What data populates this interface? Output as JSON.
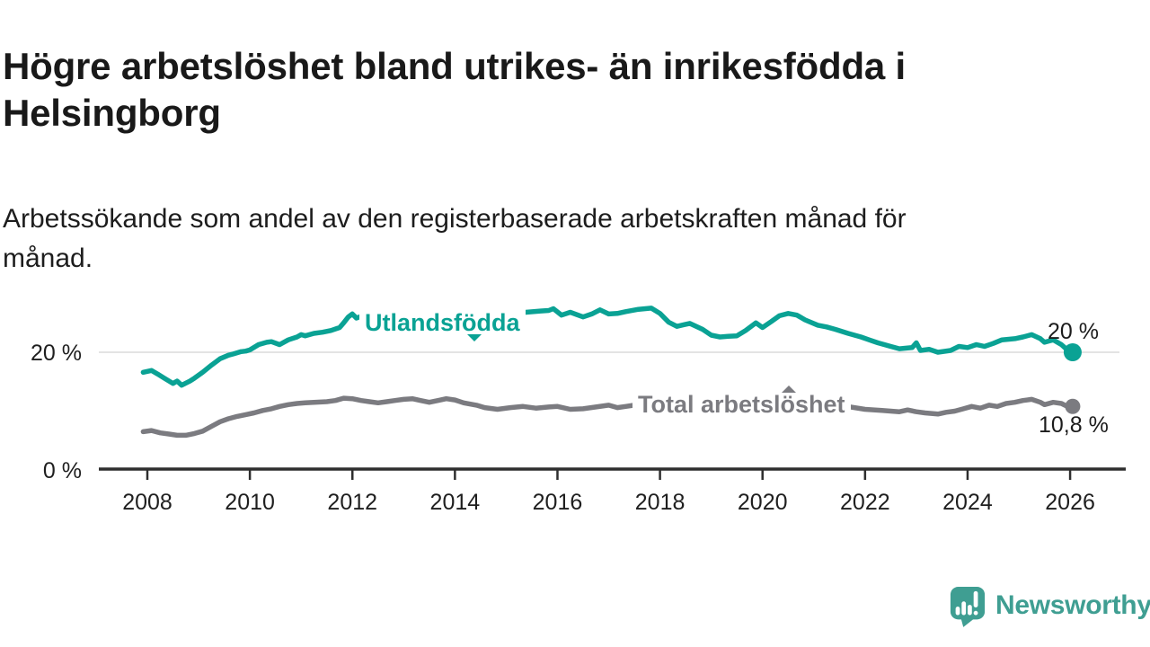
{
  "header": {
    "title": "Högre arbetslöshet bland utrikes- än inrikesfödda i Helsingborg",
    "subtitle": "Arbetssökande som andel av den registerbaserade arbetskraften månad för månad."
  },
  "chart_data": {
    "type": "line",
    "title": "Högre arbetslöshet bland utrikes- än inrikesfödda i Helsingborg",
    "subtitle": "Arbetssökande som andel av den registerbaserade arbetskraften månad för månad.",
    "xlabel": "",
    "ylabel": "",
    "x_axis": {
      "unit": "year",
      "range": [
        2007.9,
        2026.3
      ],
      "ticks": [
        2008,
        2010,
        2012,
        2014,
        2016,
        2018,
        2020,
        2022,
        2024,
        2026
      ]
    },
    "y_axis": {
      "unit": "percent",
      "range": [
        0,
        32
      ],
      "ticks": [
        {
          "value": 20,
          "label": "20 %"
        },
        {
          "value": 0,
          "label": "0 %"
        }
      ],
      "gridlines": [
        20
      ]
    },
    "grid": "single light horizontal gridline at 20 %",
    "legend_position": "inline labels on lines",
    "series": [
      {
        "name": "Utlandsfödda",
        "color": "#0aa294",
        "end_label": "20 %",
        "last_value": 20,
        "points": [
          [
            2007.92,
            16.6
          ],
          [
            2008.08,
            16.9
          ],
          [
            2008.2,
            16.3
          ],
          [
            2008.33,
            15.6
          ],
          [
            2008.5,
            14.7
          ],
          [
            2008.58,
            15.1
          ],
          [
            2008.67,
            14.4
          ],
          [
            2008.83,
            15.1
          ],
          [
            2008.92,
            15.6
          ],
          [
            2009.08,
            16.6
          ],
          [
            2009.25,
            17.8
          ],
          [
            2009.42,
            18.9
          ],
          [
            2009.58,
            19.5
          ],
          [
            2009.67,
            19.7
          ],
          [
            2009.83,
            20.1
          ],
          [
            2009.92,
            20.2
          ],
          [
            2010.0,
            20.4
          ],
          [
            2010.17,
            21.3
          ],
          [
            2010.33,
            21.7
          ],
          [
            2010.42,
            21.8
          ],
          [
            2010.58,
            21.3
          ],
          [
            2010.75,
            22.1
          ],
          [
            2010.92,
            22.6
          ],
          [
            2011.0,
            23.0
          ],
          [
            2011.08,
            22.8
          ],
          [
            2011.25,
            23.2
          ],
          [
            2011.42,
            23.4
          ],
          [
            2011.58,
            23.7
          ],
          [
            2011.75,
            24.2
          ],
          [
            2011.83,
            25.0
          ],
          [
            2011.92,
            26.0
          ],
          [
            2012.0,
            26.5
          ],
          [
            2012.08,
            25.8
          ],
          [
            2012.17,
            26.1
          ],
          [
            2012.33,
            25.7
          ],
          [
            2012.75,
            25.9
          ],
          [
            2013.25,
            26.1
          ],
          [
            2013.75,
            26.2
          ],
          [
            2014.25,
            26.4
          ],
          [
            2014.75,
            26.5
          ],
          [
            2015.25,
            26.7
          ],
          [
            2015.67,
            27.0
          ],
          [
            2015.83,
            27.1
          ],
          [
            2015.92,
            27.4
          ],
          [
            2016.08,
            26.3
          ],
          [
            2016.25,
            26.8
          ],
          [
            2016.5,
            26.0
          ],
          [
            2016.67,
            26.5
          ],
          [
            2016.83,
            27.2
          ],
          [
            2017.0,
            26.5
          ],
          [
            2017.17,
            26.6
          ],
          [
            2017.33,
            26.9
          ],
          [
            2017.58,
            27.3
          ],
          [
            2017.83,
            27.5
          ],
          [
            2018.0,
            26.6
          ],
          [
            2018.17,
            25.1
          ],
          [
            2018.33,
            24.4
          ],
          [
            2018.58,
            24.9
          ],
          [
            2018.83,
            23.9
          ],
          [
            2019.0,
            22.9
          ],
          [
            2019.17,
            22.6
          ],
          [
            2019.33,
            22.7
          ],
          [
            2019.5,
            22.8
          ],
          [
            2019.67,
            23.7
          ],
          [
            2019.87,
            25.0
          ],
          [
            2020.0,
            24.2
          ],
          [
            2020.17,
            25.2
          ],
          [
            2020.33,
            26.2
          ],
          [
            2020.5,
            26.6
          ],
          [
            2020.67,
            26.3
          ],
          [
            2020.83,
            25.5
          ],
          [
            2021.08,
            24.6
          ],
          [
            2021.25,
            24.3
          ],
          [
            2021.42,
            23.9
          ],
          [
            2021.67,
            23.2
          ],
          [
            2021.92,
            22.6
          ],
          [
            2022.08,
            22.1
          ],
          [
            2022.25,
            21.6
          ],
          [
            2022.5,
            21.0
          ],
          [
            2022.67,
            20.6
          ],
          [
            2022.92,
            20.8
          ],
          [
            2023.0,
            21.6
          ],
          [
            2023.08,
            20.3
          ],
          [
            2023.25,
            20.5
          ],
          [
            2023.42,
            20.0
          ],
          [
            2023.67,
            20.3
          ],
          [
            2023.83,
            21.0
          ],
          [
            2024.0,
            20.8
          ],
          [
            2024.17,
            21.3
          ],
          [
            2024.33,
            21.0
          ],
          [
            2024.5,
            21.5
          ],
          [
            2024.67,
            22.1
          ],
          [
            2024.92,
            22.3
          ],
          [
            2025.08,
            22.6
          ],
          [
            2025.25,
            23.0
          ],
          [
            2025.42,
            22.3
          ],
          [
            2025.5,
            21.7
          ],
          [
            2025.67,
            22.1
          ],
          [
            2025.83,
            21.3
          ],
          [
            2025.92,
            20.6
          ],
          [
            2026.05,
            20.0
          ]
        ]
      },
      {
        "name": "Total arbetslöshet",
        "color": "#7b7b80",
        "end_label": "10,8 %",
        "last_value": 10.8,
        "points": [
          [
            2007.92,
            6.5
          ],
          [
            2008.08,
            6.7
          ],
          [
            2008.25,
            6.3
          ],
          [
            2008.42,
            6.1
          ],
          [
            2008.58,
            5.9
          ],
          [
            2008.75,
            5.9
          ],
          [
            2008.92,
            6.2
          ],
          [
            2009.08,
            6.6
          ],
          [
            2009.25,
            7.4
          ],
          [
            2009.42,
            8.2
          ],
          [
            2009.58,
            8.7
          ],
          [
            2009.75,
            9.1
          ],
          [
            2009.92,
            9.4
          ],
          [
            2010.08,
            9.7
          ],
          [
            2010.25,
            10.1
          ],
          [
            2010.42,
            10.4
          ],
          [
            2010.58,
            10.8
          ],
          [
            2010.75,
            11.1
          ],
          [
            2010.92,
            11.3
          ],
          [
            2011.08,
            11.4
          ],
          [
            2011.25,
            11.5
          ],
          [
            2011.5,
            11.6
          ],
          [
            2011.67,
            11.8
          ],
          [
            2011.83,
            12.2
          ],
          [
            2012.0,
            12.1
          ],
          [
            2012.17,
            11.8
          ],
          [
            2012.33,
            11.6
          ],
          [
            2012.5,
            11.4
          ],
          [
            2012.67,
            11.6
          ],
          [
            2012.83,
            11.8
          ],
          [
            2013.0,
            12.0
          ],
          [
            2013.17,
            12.1
          ],
          [
            2013.33,
            11.8
          ],
          [
            2013.5,
            11.5
          ],
          [
            2013.67,
            11.8
          ],
          [
            2013.83,
            12.1
          ],
          [
            2014.0,
            11.9
          ],
          [
            2014.17,
            11.4
          ],
          [
            2014.42,
            11.0
          ],
          [
            2014.58,
            10.6
          ],
          [
            2014.83,
            10.3
          ],
          [
            2015.08,
            10.6
          ],
          [
            2015.33,
            10.8
          ],
          [
            2015.58,
            10.5
          ],
          [
            2015.83,
            10.7
          ],
          [
            2016.0,
            10.8
          ],
          [
            2016.25,
            10.3
          ],
          [
            2016.5,
            10.4
          ],
          [
            2016.75,
            10.7
          ],
          [
            2017.0,
            11.0
          ],
          [
            2017.17,
            10.6
          ],
          [
            2017.33,
            10.8
          ],
          [
            2017.5,
            11.0
          ],
          [
            2017.92,
            11.2
          ],
          [
            2018.5,
            10.9
          ],
          [
            2019.0,
            10.7
          ],
          [
            2019.5,
            10.6
          ],
          [
            2020.33,
            12.4
          ],
          [
            2020.92,
            11.9
          ],
          [
            2021.5,
            11.0
          ],
          [
            2022.0,
            10.3
          ],
          [
            2022.33,
            10.1
          ],
          [
            2022.5,
            10.0
          ],
          [
            2022.67,
            9.9
          ],
          [
            2022.83,
            10.2
          ],
          [
            2023.0,
            9.9
          ],
          [
            2023.17,
            9.7
          ],
          [
            2023.42,
            9.5
          ],
          [
            2023.58,
            9.8
          ],
          [
            2023.75,
            10.0
          ],
          [
            2023.92,
            10.4
          ],
          [
            2024.08,
            10.8
          ],
          [
            2024.25,
            10.5
          ],
          [
            2024.42,
            11.0
          ],
          [
            2024.58,
            10.8
          ],
          [
            2024.75,
            11.3
          ],
          [
            2024.92,
            11.5
          ],
          [
            2025.08,
            11.8
          ],
          [
            2025.25,
            12.0
          ],
          [
            2025.42,
            11.5
          ],
          [
            2025.5,
            11.1
          ],
          [
            2025.67,
            11.5
          ],
          [
            2025.83,
            11.3
          ],
          [
            2025.92,
            10.9
          ],
          [
            2026.05,
            10.8
          ]
        ]
      }
    ]
  },
  "branding": {
    "logo_text": "Newsworthy",
    "logo_color": "#3f9e92",
    "logo_icon": "speech-bubble-bar-chart-exclamation"
  }
}
